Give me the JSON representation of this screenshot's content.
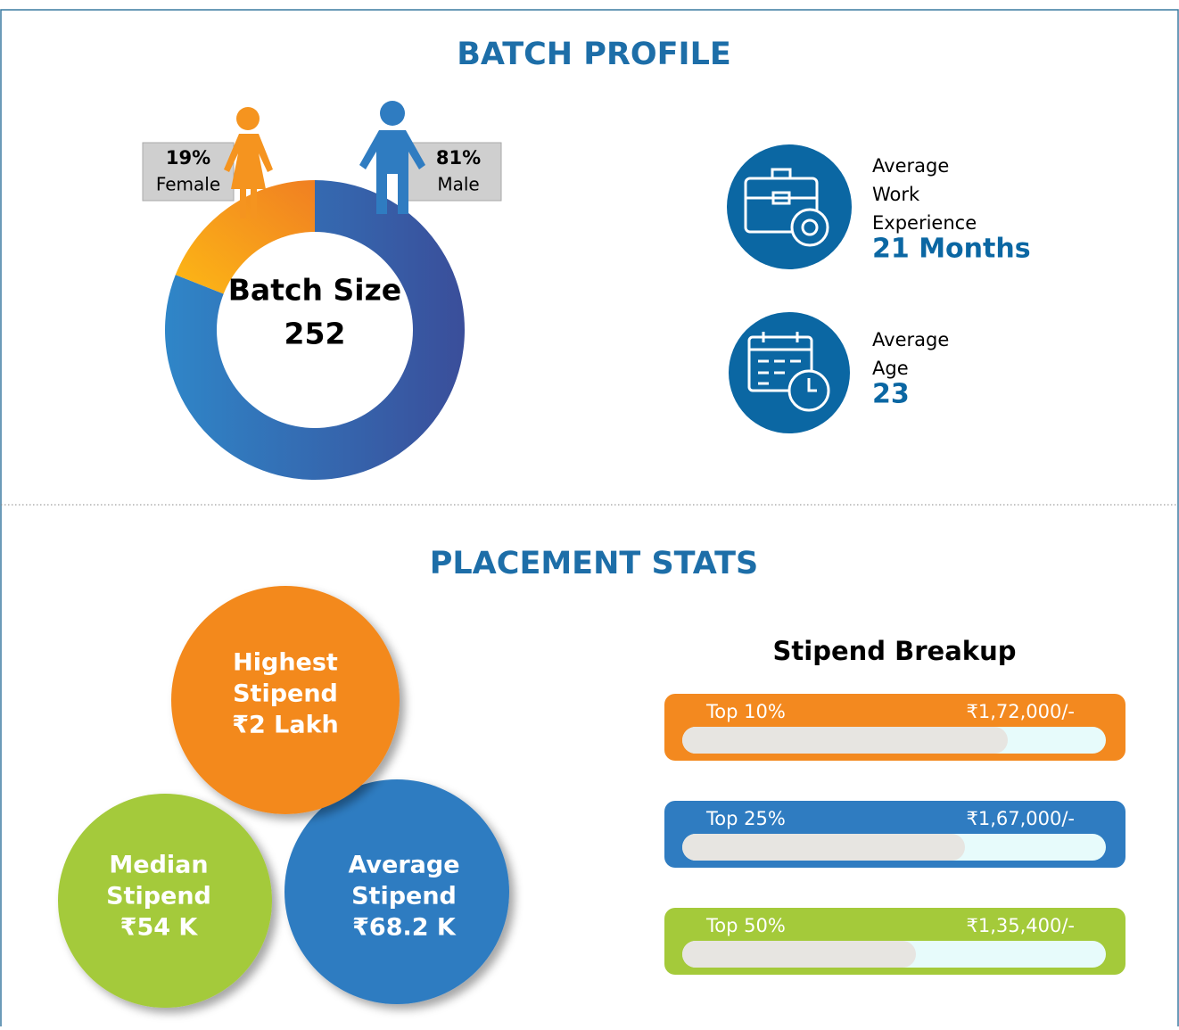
{
  "batch_profile": {
    "title": "BATCH PROFILE",
    "gender": [
      {
        "name": "Female",
        "value": 19,
        "value_label": "19%"
      },
      {
        "name": "Male",
        "value": 81,
        "value_label": "81%"
      }
    ],
    "batch_size": {
      "label": "Batch Size",
      "value": "252"
    },
    "facts": [
      {
        "label_lines": [
          "Average",
          "Work",
          "Experience"
        ],
        "value": "21 Months"
      },
      {
        "label_lines": [
          "Average",
          "Age"
        ],
        "value": "23"
      }
    ]
  },
  "placement_stats": {
    "title": "PLACEMENT STATS",
    "circles": [
      {
        "lines": [
          "Highest",
          "Stipend",
          "₹2 Lakh"
        ]
      },
      {
        "lines": [
          "Median",
          "Stipend",
          "₹54 K"
        ]
      },
      {
        "lines": [
          "Average",
          "Stipend",
          "₹68.2 K"
        ]
      }
    ],
    "breakup": {
      "title": "Stipend Breakup",
      "rows": [
        {
          "label": "Top 10%",
          "amount": "₹1,72,000/-"
        },
        {
          "label": "Top 25%",
          "amount": "₹1,67,000/-"
        },
        {
          "label": "Top 50%",
          "amount": "₹1,35,400/-"
        }
      ]
    }
  }
}
